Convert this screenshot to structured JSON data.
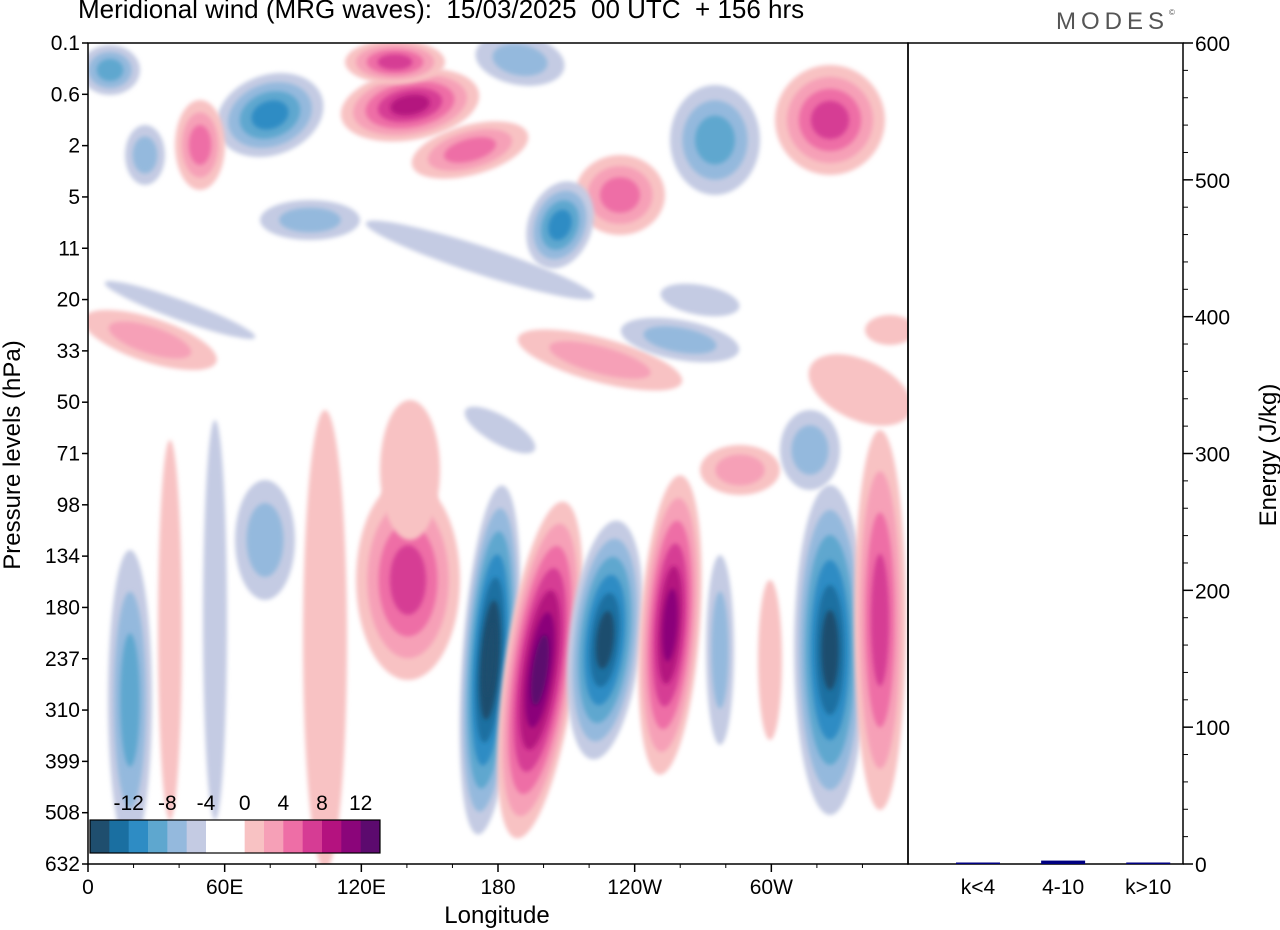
{
  "header": {
    "title": "Meridional wind (MRG waves):  15/03/2025  00 UTC  + 156 hrs",
    "brand": "MODES"
  },
  "chart_data": [
    {
      "type": "heatmap",
      "xlabel": "Longitude",
      "ylabel": "Pressure levels (hPa)",
      "x_tick_labels": [
        "0",
        "60E",
        "120E",
        "180",
        "120W",
        "60W"
      ],
      "x_range_deg": [
        0,
        360
      ],
      "y_tick_labels": [
        "0.1",
        "0.6",
        "2",
        "5",
        "11",
        "20",
        "33",
        "50",
        "71",
        "98",
        "134",
        "180",
        "237",
        "310",
        "399",
        "508",
        "632"
      ],
      "colorbar": {
        "labels": [
          "-12",
          "-8",
          "-4",
          "0",
          "4",
          "8",
          "12"
        ],
        "levels": [
          -14,
          -12,
          -10,
          -8,
          -6,
          -4,
          -2,
          2,
          4,
          6,
          8,
          10,
          12,
          14
        ],
        "colors": [
          "#1f4e6e",
          "#1a6fa1",
          "#2e8cc4",
          "#5ea7cf",
          "#94b9dd",
          "#c4cbe3",
          "#ffffff",
          "#ffffff",
          "#f8c2c3",
          "#f6a0b7",
          "#ee6ea6",
          "#d63c94",
          "#b4127f",
          "#8b057a",
          "#5c0a6e"
        ]
      }
    },
    {
      "type": "bar",
      "categories": [
        "k<4",
        "4-10",
        "k>10"
      ],
      "values": [
        0.5,
        2.5,
        0.5
      ],
      "ylabel": "Energy (J/kg)",
      "ylim": [
        0,
        600
      ],
      "y_tick_labels": [
        "0",
        "100",
        "200",
        "300",
        "400",
        "500",
        "600"
      ],
      "bar_color": "#000080"
    }
  ]
}
